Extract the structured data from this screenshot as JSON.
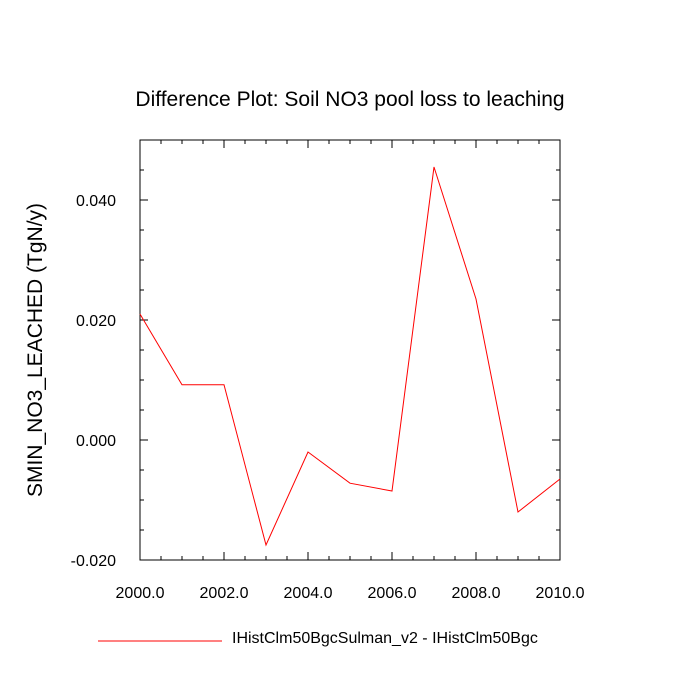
{
  "chart_data": {
    "type": "line",
    "title": "Difference Plot: Soil NO3 pool loss to leaching",
    "xlabel": "",
    "ylabel": "SMIN_NO3_LEACHED  (TgN/y)",
    "xlim": [
      2000,
      2010
    ],
    "ylim": [
      -0.02,
      0.05
    ],
    "x_ticks": [
      "2000.0",
      "2002.0",
      "2004.0",
      "2006.0",
      "2008.0",
      "2010.0"
    ],
    "x_tick_values": [
      2000,
      2002,
      2004,
      2006,
      2008,
      2010
    ],
    "y_ticks": [
      "-0.020",
      "0.000",
      "0.020",
      "0.040"
    ],
    "y_tick_values": [
      -0.02,
      0.0,
      0.02,
      0.04
    ],
    "grid": false,
    "legend_position": "bottom",
    "series": [
      {
        "name": "IHistClm50BgcSulman_v2 - IHistClm50Bgc",
        "color": "#ff0000",
        "x": [
          2000,
          2001,
          2002,
          2003,
          2004,
          2005,
          2006,
          2007,
          2008,
          2009,
          2010
        ],
        "values": [
          0.021,
          0.0092,
          0.0092,
          -0.0175,
          -0.002,
          -0.0072,
          -0.0085,
          0.0455,
          0.0235,
          -0.012,
          -0.0065
        ]
      }
    ]
  }
}
